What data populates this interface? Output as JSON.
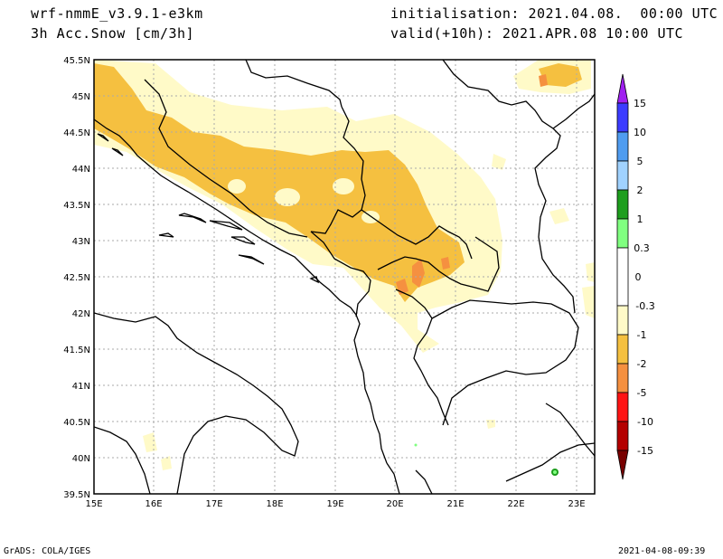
{
  "header": {
    "model": "wrf-nmmE_v3.9.1-e3km",
    "variable": "3h Acc.Snow [cm/3h]",
    "init": "initialisation: 2021.04.08.  00:00 UTC",
    "valid": "valid(+10h): 2021.APR.08 10:00 UTC"
  },
  "footer": {
    "credit": "GrADS: COLA/IGES",
    "timestamp": "2021-04-08-09:39"
  },
  "map": {
    "lat_labels": [
      "45.5N",
      "45N",
      "44.5N",
      "44N",
      "43.5N",
      "43N",
      "42.5N",
      "42N",
      "41.5N",
      "41N",
      "40.5N",
      "40N",
      "39.5N"
    ],
    "lon_labels": [
      "15E",
      "16E",
      "17E",
      "18E",
      "19E",
      "20E",
      "21E",
      "22E",
      "23E"
    ],
    "lat_range": [
      39.5,
      45.5
    ],
    "lon_range": [
      15,
      23.3
    ],
    "grid": true
  },
  "legend": {
    "labels": [
      "15",
      "10",
      "5",
      "2",
      "1",
      "0.3",
      "0",
      "-0.3",
      "-1",
      "-2",
      "-5",
      "-10",
      "-15"
    ],
    "colors": {
      "violet": "#a020f0",
      "blue": "#3c3cff",
      "mid_blue": "#4f9cf0",
      "light_blue": "#a0d2ff",
      "dark_green": "#1e9e1e",
      "green": "#80ff80",
      "white": "#ffffff",
      "pale_yellow": "#fffac8",
      "yellow_orange": "#f5c040",
      "orange": "#f59040",
      "red": "#ff1414",
      "dark_red": "#b40000",
      "maroon": "#780000"
    }
  }
}
